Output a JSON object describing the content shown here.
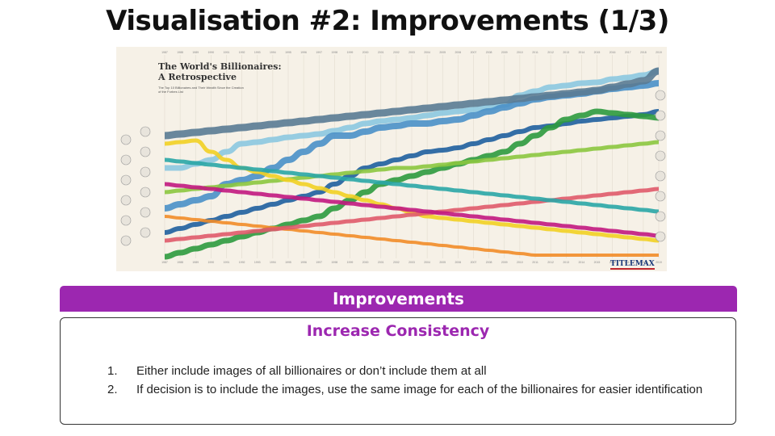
{
  "slide": {
    "title": "Visualisation #2: Improvements (1/3)"
  },
  "figure": {
    "title_line1": "The World's Billionaires:",
    "title_line2": "A Retrospective",
    "subtitle": "The Top 10 Billionaires and Their Wealth Since the Creation of the Forbes List",
    "logo": "TITLEMAX",
    "years": [
      "1987",
      "1988",
      "1989",
      "1990",
      "1991",
      "1992",
      "1993",
      "1994",
      "1995",
      "1996",
      "1997",
      "1998",
      "1999",
      "2000",
      "2001",
      "2002",
      "2003",
      "2004",
      "2005",
      "2006",
      "2007",
      "2008",
      "2009",
      "2010",
      "2011",
      "2012",
      "2013",
      "2014",
      "2015",
      "2016",
      "2017",
      "2018",
      "2019"
    ],
    "colors": {
      "blue_dark": "#1f5f9e",
      "blue": "#4a90c8",
      "blue_light": "#8cc8e0",
      "green": "#2e9a3e",
      "green_light": "#8cc63f",
      "yellow": "#f2d024",
      "orange": "#f28c28",
      "red": "#e05a6a",
      "magenta": "#c2187f",
      "teal": "#2aa6a6",
      "purple": "#6a4c9c",
      "slate": "#5a7b94"
    }
  },
  "improvements": {
    "header": "Improvements",
    "heading": "Increase Consistency",
    "items": [
      {
        "num": "1.",
        "text": "Either include images of all billionaires or don’t include them at all"
      },
      {
        "num": "2.",
        "text": "If decision is to include the images, use the same image for each of the billionaires for easier identification"
      }
    ]
  }
}
